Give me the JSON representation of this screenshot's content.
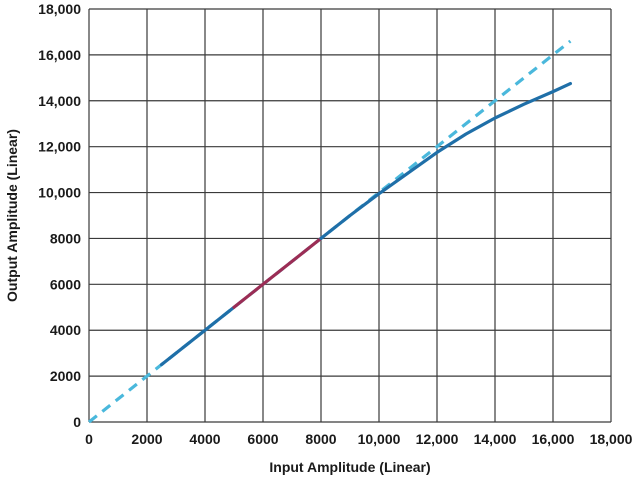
{
  "chart_data": {
    "type": "line",
    "title": "",
    "xlabel": "Input Amplitude (Linear)",
    "ylabel": "Output Amplitude (Linear)",
    "xlim": [
      0,
      18000
    ],
    "ylim": [
      0,
      18000
    ],
    "grid": true,
    "x_ticks": [
      "0",
      "2000",
      "4000",
      "6000",
      "8000",
      "10,000",
      "12,000",
      "14,000",
      "16,000",
      "18,000"
    ],
    "y_ticks": [
      "0",
      "2000",
      "4000",
      "6000",
      "8000",
      "10,000",
      "12,000",
      "14,000",
      "16,000",
      "18,000"
    ],
    "series": [
      {
        "color": "#4ab8dc",
        "style": "dashed",
        "x": [
          0,
          16600
        ],
        "y": [
          0,
          16600
        ]
      },
      {
        "color": "#1f6fa8",
        "style": "solid",
        "x": [
          2500,
          4000,
          5000
        ],
        "y": [
          2500,
          4000,
          5000
        ]
      },
      {
        "color": "#9b2d55",
        "style": "solid",
        "x": [
          5000,
          6000,
          7000,
          8000
        ],
        "y": [
          5000,
          6000,
          7000,
          8000
        ]
      },
      {
        "color": "#1f6fa8",
        "style": "solid",
        "x": [
          8000,
          9000,
          10000,
          11000,
          12000,
          13000,
          14000,
          15000,
          16000,
          16600
        ],
        "y": [
          8000,
          9000,
          9950,
          10850,
          11750,
          12550,
          13250,
          13850,
          14400,
          14750
        ]
      }
    ]
  }
}
